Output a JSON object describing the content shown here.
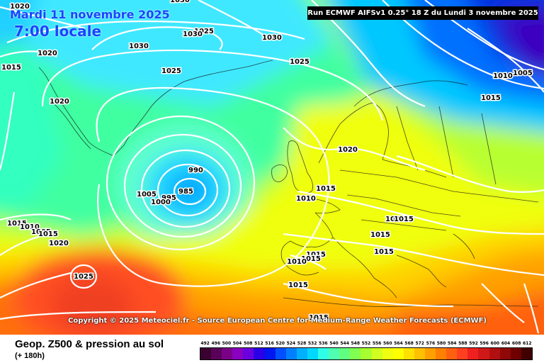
{
  "header": {
    "date": "Mardi 11 novembre 2025",
    "time": "7:00 locale",
    "run": "Run ECMWF AIFSv1 0.25° 18 Z du Lundi 3 novembre 2025"
  },
  "copyright": "Copyright © 2025 Meteociel.fr - Source European Centre for Medium-Range Weather Forecasts (ECMWF)",
  "footer": {
    "title": "Geop. Z500 & pression au sol",
    "subtitle": "(+ 180h)"
  },
  "legend": {
    "labels": [
      "492",
      "496",
      "500",
      "504",
      "508",
      "512",
      "516",
      "520",
      "524",
      "528",
      "532",
      "536",
      "540",
      "544",
      "548",
      "552",
      "556",
      "560",
      "564",
      "568",
      "572",
      "576",
      "580",
      "584",
      "588",
      "592",
      "596",
      "600",
      "604",
      "608",
      "612"
    ],
    "colors": [
      "#3a0030",
      "#5a0058",
      "#7a0088",
      "#8a00c0",
      "#6a00e0",
      "#2a00e8",
      "#0018f0",
      "#0050ff",
      "#0080ff",
      "#00b0ff",
      "#00d8ff",
      "#30ffe8",
      "#50ffb0",
      "#60ff80",
      "#80ff50",
      "#a8ff30",
      "#d0ff20",
      "#f0ff10",
      "#ffff00",
      "#ffe000",
      "#ffc000",
      "#ffa000",
      "#ff8000",
      "#ff6010",
      "#ff4020",
      "#f02020",
      "#d01818",
      "#b01010",
      "#900808",
      "#700000",
      "#400000"
    ]
  },
  "isobars": [
    {
      "id": "lbl-1020-tl",
      "text": "1020"
    },
    {
      "id": "lbl-1015-l",
      "text": "1015"
    },
    {
      "id": "lbl-1020-gl1",
      "text": "1020"
    },
    {
      "id": "lbl-1020-gl2",
      "text": "1020"
    },
    {
      "id": "lbl-1030-top",
      "text": "1030"
    },
    {
      "id": "lbl-1025-g1",
      "text": "1025"
    },
    {
      "id": "lbl-1025-g2",
      "text": "1025"
    },
    {
      "id": "lbl-1030-b",
      "text": "1030"
    },
    {
      "id": "lbl-1030-c",
      "text": "1030"
    },
    {
      "id": "lbl-1025-c",
      "text": "1025"
    },
    {
      "id": "lbl-1030-t",
      "text": "1030"
    },
    {
      "id": "lbl-1010-ne",
      "text": "1010"
    },
    {
      "id": "lbl-1005-ne",
      "text": "1005"
    },
    {
      "id": "lbl-1015-ne",
      "text": "1015"
    },
    {
      "id": "lbl-990",
      "text": "990"
    },
    {
      "id": "lbl-985",
      "text": "985"
    },
    {
      "id": "lbl-1005-low",
      "text": "1005"
    },
    {
      "id": "lbl-995",
      "text": "995"
    },
    {
      "id": "lbl-1000",
      "text": "1000"
    },
    {
      "id": "lbl-1020-n",
      "text": "1020"
    },
    {
      "id": "lbl-1015-uk",
      "text": "1015"
    },
    {
      "id": "lbl-1010-uk",
      "text": "1010"
    },
    {
      "id": "lbl-1015-c1",
      "text": "1015"
    },
    {
      "id": "lbl-1015-c2",
      "text": "1015"
    },
    {
      "id": "lbl-1015-c3",
      "text": "1015"
    },
    {
      "id": "lbl-1015-c4",
      "text": "1015"
    },
    {
      "id": "lbl-1015-sp1",
      "text": "1015"
    },
    {
      "id": "lbl-1015-sp2",
      "text": "1015"
    },
    {
      "id": "lbl-1010-sp",
      "text": "1010"
    },
    {
      "id": "lbl-1015-med",
      "text": "1015"
    },
    {
      "id": "lbl-1015-af",
      "text": "1015"
    },
    {
      "id": "lbl-1015-l2",
      "text": "1015"
    },
    {
      "id": "lbl-1010-l2",
      "text": "1010"
    },
    {
      "id": "lbl-1005-l2",
      "text": "1005"
    },
    {
      "id": "lbl-1015-l3",
      "text": "1015"
    },
    {
      "id": "lbl-1020-sw",
      "text": "1020"
    },
    {
      "id": "lbl-1025-h",
      "text": "1025"
    }
  ]
}
